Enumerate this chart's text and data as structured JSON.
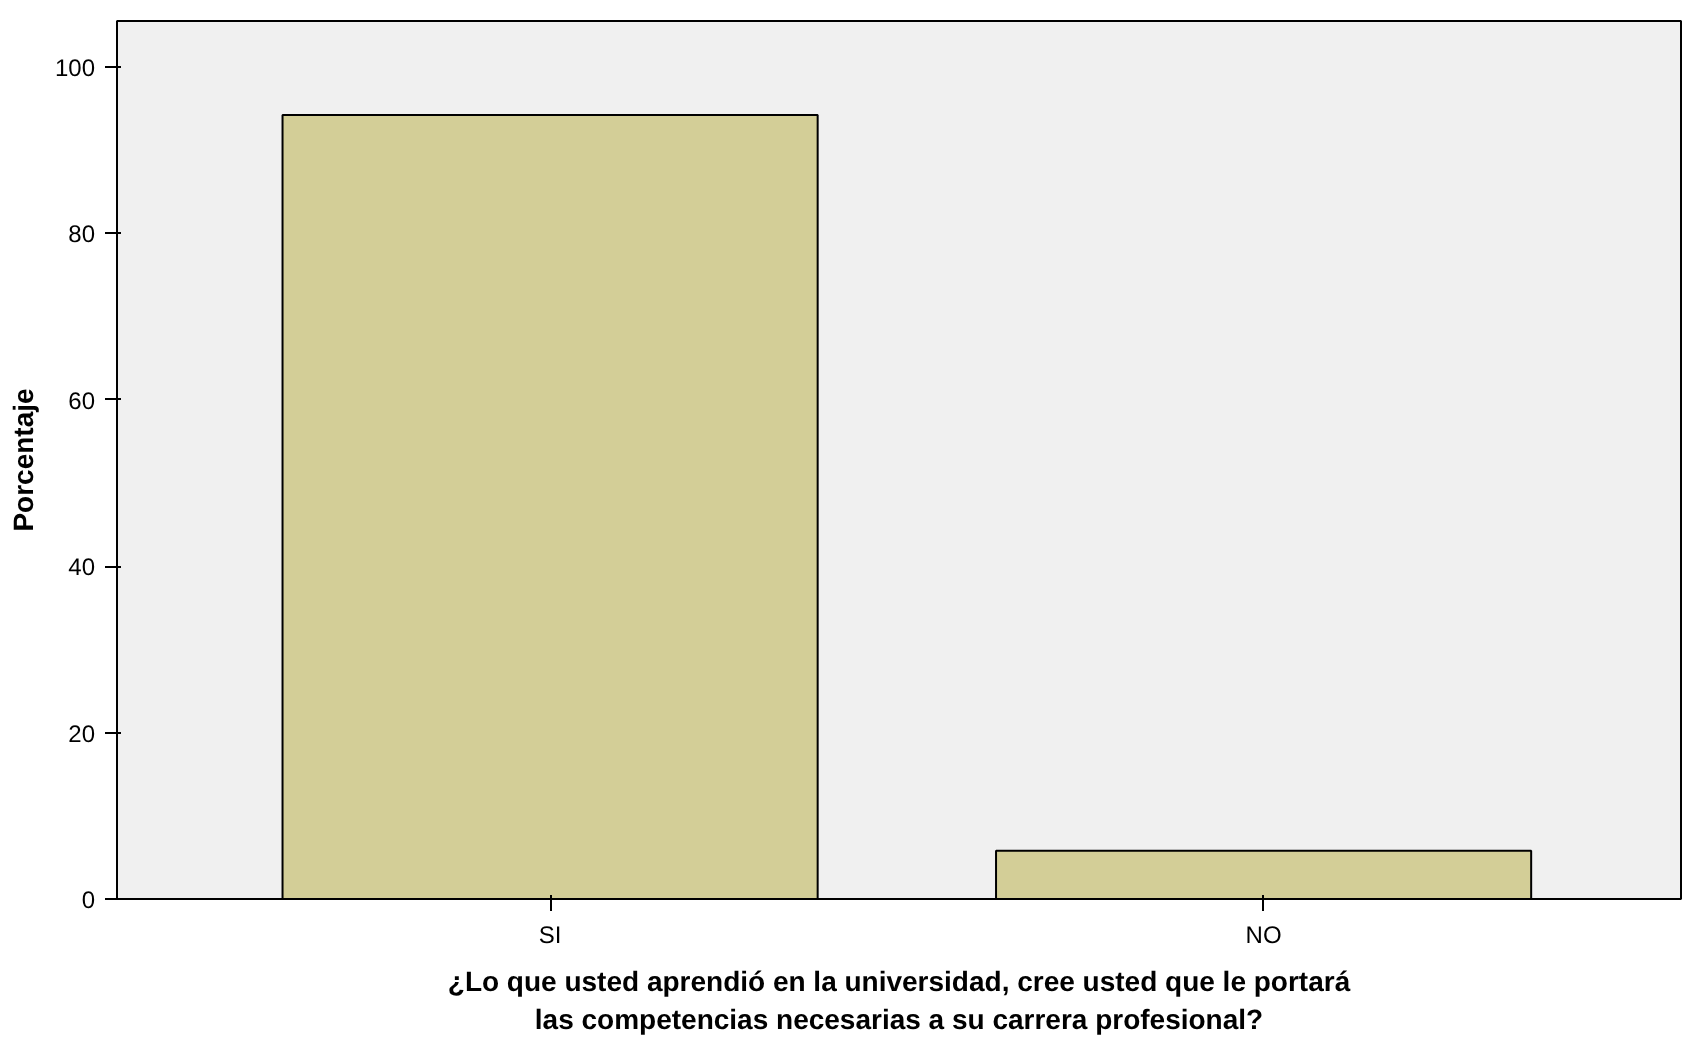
{
  "chart_data": {
    "type": "bar",
    "categories": [
      "SI",
      "NO"
    ],
    "values": [
      94.2,
      5.8
    ],
    "color": "#d3ce97",
    "ylabel": "Porcentaje",
    "xlabel": "¿Lo que usted aprendió en la universidad, cree usted que le portará las competencias necesarias a su carrera profesional?",
    "ylim": [
      0,
      105.5
    ],
    "yticks": [
      0,
      20,
      40,
      60,
      80,
      100
    ],
    "grid": false
  }
}
